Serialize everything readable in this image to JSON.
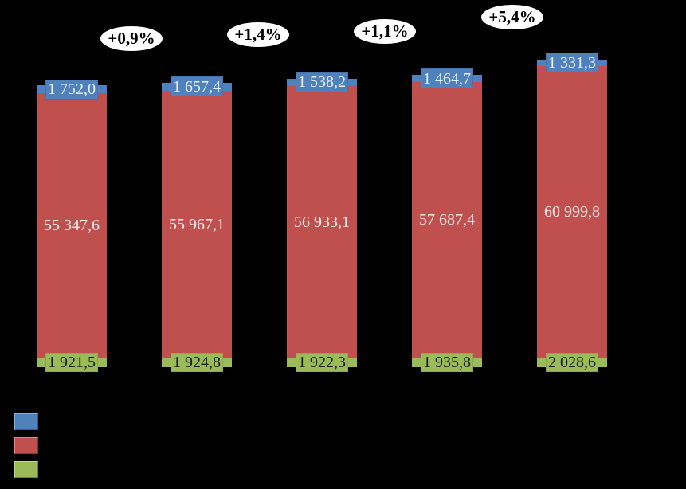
{
  "chart_data": {
    "type": "bar",
    "stacked": true,
    "background_color": "#000000",
    "axis_visible": false,
    "grid": false,
    "legend_position": "bottom-left",
    "value_format": "space thousands, comma decimal",
    "categories": [
      "",
      "",
      "",
      "",
      ""
    ],
    "series": [
      {
        "name": "top-segment-blue",
        "color": "#4F81BD",
        "label_text_color": "#EAF0F9",
        "values": [
          1752.0,
          1657.4,
          1538.2,
          1464.7,
          1331.3
        ],
        "labels": [
          "1 752,0",
          "1 657,4",
          "1 538,2",
          "1 464,7",
          "1 331,3"
        ]
      },
      {
        "name": "middle-segment-red",
        "color": "#C0504D",
        "label_text_color": "#F4EEEE",
        "values": [
          55347.6,
          55967.1,
          56933.1,
          57687.4,
          60999.8
        ],
        "labels": [
          "55 347,6",
          "55 967,1",
          "56 933,1",
          "57 687,4",
          "60 999,8"
        ]
      },
      {
        "name": "bottom-segment-green",
        "color": "#9BBB59",
        "label_text_color": "#1A1A1A",
        "values": [
          1921.5,
          1924.8,
          1922.3,
          1935.8,
          2028.6
        ],
        "labels": [
          "1 921,5",
          "1 924,8",
          "1 922,3",
          "1 935,8",
          "2 028,6"
        ]
      }
    ],
    "growth_annotations": [
      {
        "label": "+0,9%",
        "between_bars": [
          1,
          2
        ]
      },
      {
        "label": "+1,4%",
        "between_bars": [
          2,
          3
        ]
      },
      {
        "label": "+1,1%",
        "between_bars": [
          3,
          4
        ]
      },
      {
        "label": "+5,4%",
        "between_bars": [
          4,
          5
        ]
      }
    ],
    "annotation_style": {
      "fill": "#FFFFFF",
      "text_color": "#000000"
    },
    "legend": [
      {
        "label": "",
        "color": "#4F81BD"
      },
      {
        "label": "",
        "color": "#C0504D"
      },
      {
        "label": "",
        "color": "#9BBB59"
      }
    ]
  }
}
